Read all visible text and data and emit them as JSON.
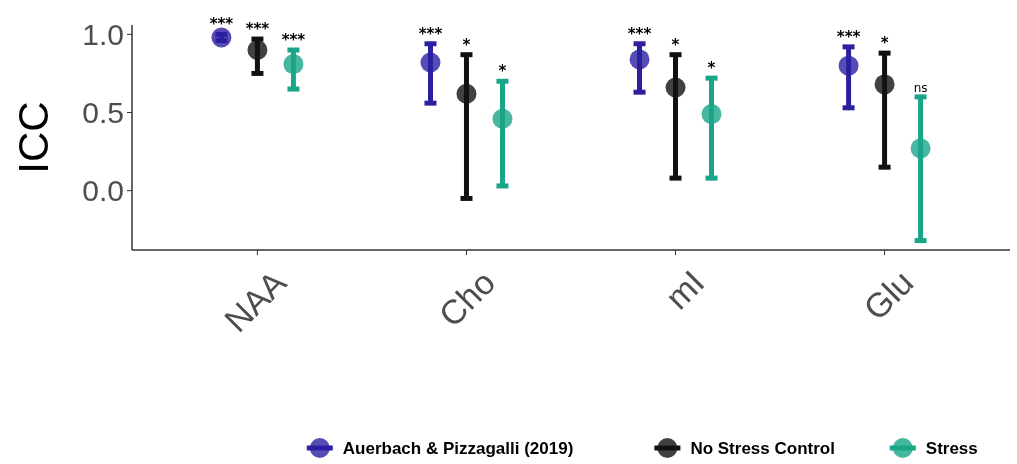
{
  "chart_data": {
    "type": "scatter",
    "ylabel": "ICC",
    "categories": [
      "NAA",
      "Cho",
      "mI",
      "Glu"
    ],
    "ylim": [
      -0.38,
      1.06
    ],
    "yticks": [
      {
        "value": 0,
        "label": "0.0"
      },
      {
        "value": 0.5,
        "label": "0.5"
      },
      {
        "value": 1,
        "label": "1.0"
      }
    ],
    "marker": "circle",
    "legend": "bottom",
    "grid": false,
    "annotations": [
      "***",
      "***",
      "***",
      "***",
      "*",
      "*",
      "***",
      "*",
      "*",
      "***",
      "*",
      "ns"
    ],
    "series": [
      {
        "name": "Auerbach & Pizzagalli (2019)",
        "color": "#2c1fa0",
        "values": [
          0.98,
          0.82,
          0.84,
          0.8
        ],
        "errors": [
          [
            0.96,
            1.0
          ],
          [
            0.56,
            0.94
          ],
          [
            0.63,
            0.94
          ],
          [
            0.53,
            0.92
          ]
        ]
      },
      {
        "name": "No Stress Control",
        "color": "#111111",
        "values": [
          0.9,
          0.62,
          0.66,
          0.68
        ],
        "errors": [
          [
            0.75,
            0.97
          ],
          [
            -0.05,
            0.87
          ],
          [
            0.08,
            0.87
          ],
          [
            0.15,
            0.88
          ]
        ]
      },
      {
        "name": "Stress",
        "color": "#1aa589",
        "values": [
          0.81,
          0.46,
          0.49,
          0.27
        ],
        "errors": [
          [
            0.65,
            0.9
          ],
          [
            0.03,
            0.7
          ],
          [
            0.08,
            0.72
          ],
          [
            -0.32,
            0.6
          ]
        ]
      }
    ]
  }
}
